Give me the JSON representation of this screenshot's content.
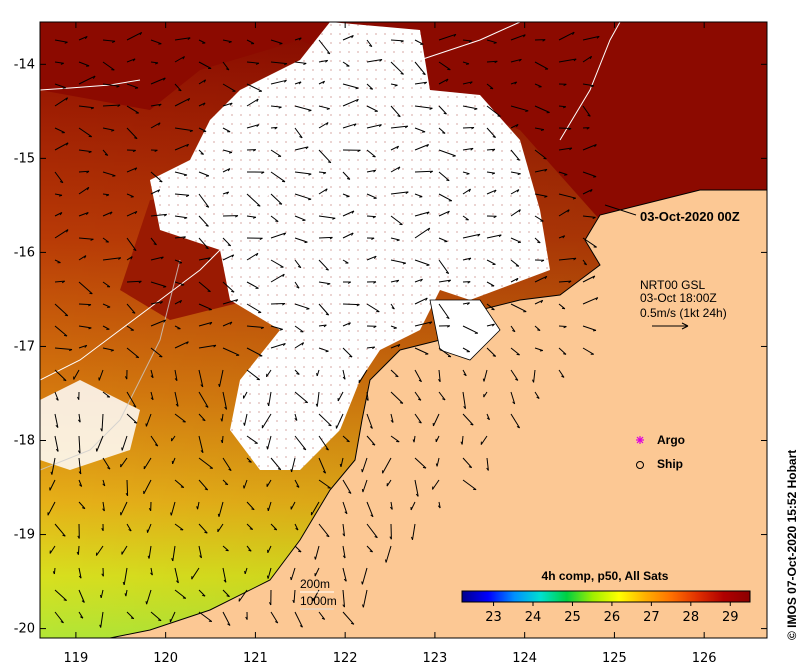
{
  "map": {
    "lon_ticks": [
      "119",
      "120",
      "121",
      "122",
      "123",
      "124",
      "125",
      "126"
    ],
    "lat_ticks": [
      "-14",
      "-15",
      "-16",
      "-17",
      "-18",
      "-19",
      "-20"
    ],
    "lon_range": [
      118.6,
      126.7
    ],
    "lat_range": [
      -20.1,
      -13.55
    ],
    "timestamp_label": "03-Oct-2020 00Z",
    "current_source": {
      "line1": "NRT00 GSL",
      "line2": "03-Oct 18:00Z",
      "line3": "0.5m/s (1kt 24h)"
    },
    "legend": {
      "argo_label": "Argo",
      "ship_label": "Ship",
      "argo_color": "#dd00dd",
      "argo_icon": "asterisk-marker-icon",
      "ship_icon": "circle-marker-icon"
    },
    "depth_contours": {
      "c200": "200m",
      "c1000": "1000m"
    },
    "colorbar": {
      "title": "4h comp, p50, All Sats",
      "ticks": [
        "23",
        "24",
        "25",
        "26",
        "27",
        "28",
        "29"
      ],
      "range": [
        22.2,
        29.5
      ],
      "colors": [
        "#00008c",
        "#0000ff",
        "#0090ff",
        "#00e0d0",
        "#00d040",
        "#a0f000",
        "#ffff00",
        "#ffb000",
        "#ff7000",
        "#e03000",
        "#b00000",
        "#8c0000"
      ]
    },
    "land_color": "#fcc894",
    "cloud_color": "#ffffff",
    "credit": "© IMOS 07-Oct-2020 15:52 Hobart"
  }
}
